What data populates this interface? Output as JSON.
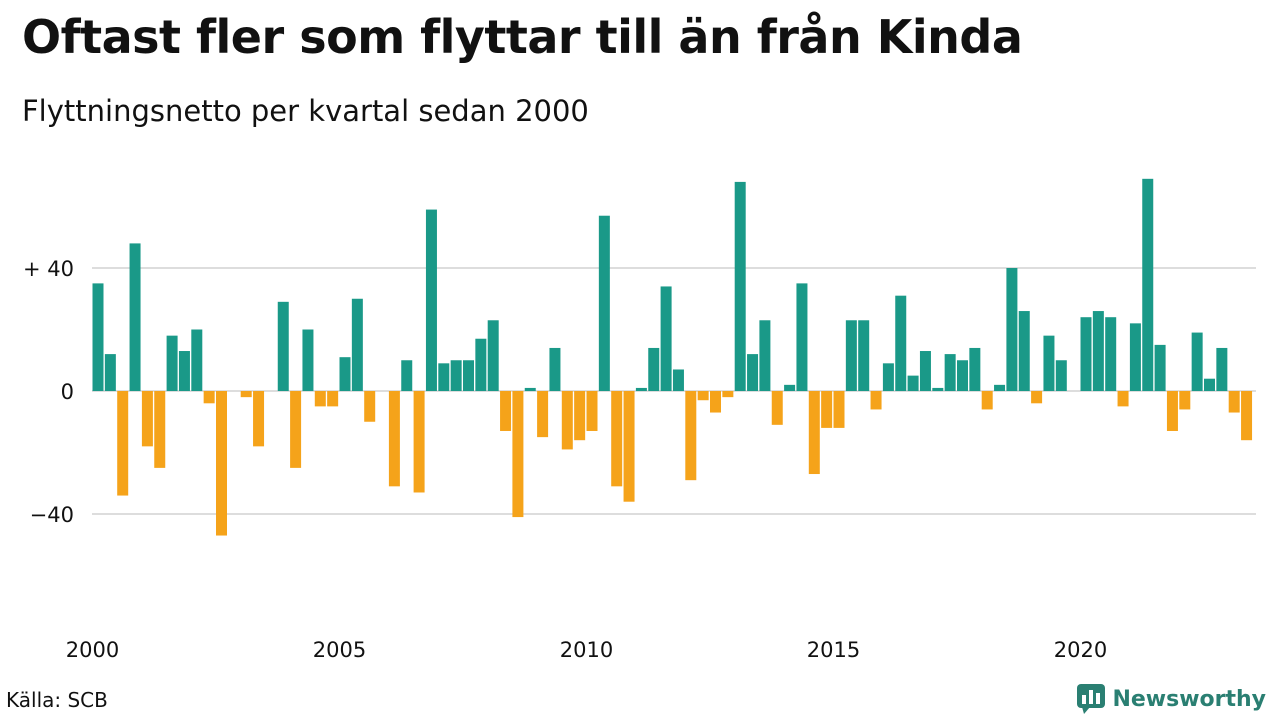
{
  "header": {
    "title": "Oftast fler som flyttar till än från Kinda",
    "subtitle": "Flyttningsnetto per kvartal sedan 2000"
  },
  "footer": {
    "source": "Källa: SCB",
    "brand": "Newsworthy"
  },
  "colors": {
    "positive": "#1a9988",
    "negative": "#f5a31a",
    "grid": "#dddddd",
    "brand": "#2a7f72"
  },
  "chart_data": {
    "type": "bar",
    "start_year": 2000,
    "periods_per_year": 4,
    "values": [
      35,
      12,
      -34,
      48,
      -18,
      -25,
      18,
      13,
      20,
      -4,
      -47,
      0,
      -2,
      -18,
      0,
      29,
      -25,
      20,
      -5,
      -5,
      11,
      30,
      -10,
      0,
      -31,
      10,
      -33,
      59,
      9,
      10,
      10,
      17,
      23,
      -13,
      -41,
      1,
      -15,
      14,
      -19,
      -16,
      -13,
      57,
      -31,
      -36,
      1,
      14,
      34,
      7,
      -29,
      -3,
      -7,
      -2,
      68,
      12,
      23,
      -11,
      2,
      35,
      -27,
      -12,
      -12,
      23,
      23,
      -6,
      9,
      31,
      5,
      13,
      1,
      12,
      10,
      14,
      -6,
      2,
      40,
      26,
      -4,
      18,
      10,
      0,
      24,
      26,
      24,
      -5,
      22,
      69,
      15,
      -13,
      -6,
      19,
      4,
      14,
      -7,
      -16
    ],
    "y_ticks": [
      {
        "value": 40,
        "label": "+ 40"
      },
      {
        "value": 0,
        "label": "0"
      },
      {
        "value": -40,
        "label": "−40"
      }
    ],
    "x_ticks": [
      {
        "value": 2000,
        "label": "2000"
      },
      {
        "value": 2005,
        "label": "2005"
      },
      {
        "value": 2010,
        "label": "2010"
      },
      {
        "value": 2015,
        "label": "2015"
      },
      {
        "value": 2020,
        "label": "2020"
      }
    ],
    "ylim": [
      -68,
      78
    ],
    "grid": true
  }
}
